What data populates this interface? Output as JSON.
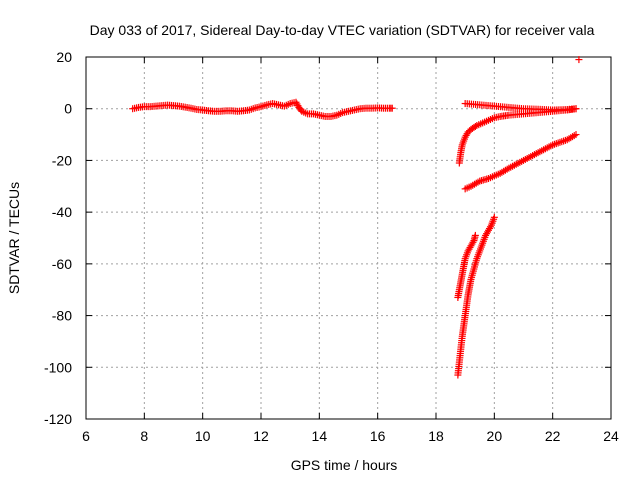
{
  "chart_data": {
    "type": "scatter",
    "title": "Day 033 of 2017, Sidereal Day-to-day VTEC variation (SDTVAR) for receiver vala",
    "xlabel": "GPS time / hours",
    "ylabel": "SDTVAR / TECUs",
    "xlim": [
      6,
      24
    ],
    "ylim": [
      -120,
      20
    ],
    "xticks": [
      6,
      8,
      10,
      12,
      14,
      16,
      18,
      20,
      22,
      24
    ],
    "yticks": [
      -120,
      -100,
      -80,
      -60,
      -40,
      -20,
      0,
      20
    ],
    "xtick_labels": [
      "6",
      "8",
      "10",
      "12",
      "14",
      "16",
      "18",
      "20",
      "22",
      "24"
    ],
    "ytick_labels": [
      "-120",
      "-100",
      "-80",
      "-60",
      "-40",
      "-20",
      "0",
      "20"
    ],
    "grid": true,
    "marker": "+",
    "color": "#ff0000",
    "series": [
      {
        "points": [
          [
            7.6,
            0
          ],
          [
            7.8,
            0.5
          ],
          [
            8.0,
            0.8
          ],
          [
            8.2,
            0.8
          ],
          [
            8.4,
            1.0
          ],
          [
            8.6,
            1.2
          ],
          [
            8.8,
            1.4
          ],
          [
            9.0,
            1.2
          ],
          [
            9.2,
            1.0
          ],
          [
            9.4,
            0.6
          ],
          [
            9.6,
            0.2
          ],
          [
            9.8,
            -0.3
          ],
          [
            10.0,
            -0.5
          ],
          [
            10.2,
            -0.8
          ],
          [
            10.4,
            -1.0
          ],
          [
            10.6,
            -1.0
          ],
          [
            10.8,
            -0.8
          ],
          [
            11.0,
            -0.8
          ],
          [
            11.2,
            -1.0
          ],
          [
            11.4,
            -0.8
          ],
          [
            11.6,
            -0.5
          ],
          [
            11.8,
            0.3
          ],
          [
            12.0,
            0.8
          ],
          [
            12.2,
            1.5
          ],
          [
            12.4,
            2.0
          ],
          [
            12.6,
            1.5
          ],
          [
            12.8,
            1.0
          ],
          [
            13.0,
            2.0
          ],
          [
            13.2,
            2.5
          ],
          [
            13.3,
            0.5
          ],
          [
            13.4,
            -1.0
          ],
          [
            13.6,
            -2.0
          ],
          [
            13.8,
            -2.0
          ],
          [
            14.0,
            -2.5
          ],
          [
            14.2,
            -3.0
          ],
          [
            14.4,
            -3.0
          ],
          [
            14.6,
            -2.5
          ],
          [
            14.8,
            -1.5
          ],
          [
            15.0,
            -1.0
          ],
          [
            15.2,
            -0.5
          ],
          [
            15.4,
            0
          ],
          [
            15.6,
            0.2
          ],
          [
            15.8,
            0.2
          ],
          [
            16.0,
            0.3
          ],
          [
            16.2,
            0.2
          ],
          [
            16.4,
            0.2
          ],
          [
            16.5,
            0.2
          ]
        ]
      },
      {
        "points": [
          [
            18.8,
            -21
          ],
          [
            18.85,
            -17
          ],
          [
            18.9,
            -14
          ],
          [
            19.0,
            -11
          ],
          [
            19.1,
            -9
          ],
          [
            19.2,
            -8
          ],
          [
            19.4,
            -6.5
          ],
          [
            19.6,
            -5.5
          ],
          [
            19.8,
            -4.5
          ],
          [
            20.0,
            -3.5
          ],
          [
            20.2,
            -3
          ],
          [
            20.5,
            -2.5
          ],
          [
            21.0,
            -2
          ],
          [
            21.5,
            -1.5
          ],
          [
            22.0,
            -1
          ],
          [
            22.5,
            -0.5
          ],
          [
            22.8,
            0
          ]
        ]
      },
      {
        "points": [
          [
            19.0,
            2
          ],
          [
            19.5,
            1.5
          ],
          [
            20.0,
            1
          ],
          [
            20.5,
            0.5
          ],
          [
            21.0,
            0
          ],
          [
            21.5,
            -0.2
          ],
          [
            22.0,
            -0.5
          ],
          [
            22.5,
            -0.3
          ],
          [
            22.8,
            0
          ]
        ]
      },
      {
        "points": [
          [
            19.0,
            -31
          ],
          [
            19.2,
            -30
          ],
          [
            19.5,
            -28
          ],
          [
            19.8,
            -27
          ],
          [
            20.0,
            -26
          ],
          [
            20.2,
            -25
          ],
          [
            20.5,
            -23
          ],
          [
            21.0,
            -20
          ],
          [
            21.5,
            -17
          ],
          [
            22.0,
            -14
          ],
          [
            22.5,
            -12
          ],
          [
            22.8,
            -10
          ]
        ]
      },
      {
        "points": [
          [
            18.75,
            -103
          ],
          [
            18.8,
            -98
          ],
          [
            18.85,
            -93
          ],
          [
            18.9,
            -88
          ],
          [
            18.95,
            -84
          ],
          [
            19.0,
            -80
          ],
          [
            19.05,
            -76
          ],
          [
            19.1,
            -72
          ],
          [
            19.15,
            -69
          ],
          [
            19.2,
            -66
          ],
          [
            19.3,
            -62
          ],
          [
            19.4,
            -58
          ],
          [
            19.5,
            -55
          ],
          [
            19.6,
            -52
          ],
          [
            19.7,
            -49
          ],
          [
            19.8,
            -47
          ],
          [
            19.9,
            -45
          ],
          [
            20.0,
            -42
          ]
        ]
      },
      {
        "points": [
          [
            18.75,
            -73
          ],
          [
            18.8,
            -70
          ],
          [
            18.85,
            -67
          ],
          [
            18.9,
            -64
          ],
          [
            18.95,
            -61
          ],
          [
            19.0,
            -58
          ],
          [
            19.1,
            -55
          ],
          [
            19.2,
            -53
          ],
          [
            19.3,
            -51
          ],
          [
            19.35,
            -49
          ]
        ]
      },
      {
        "points": [
          [
            22.9,
            19
          ]
        ]
      }
    ]
  }
}
